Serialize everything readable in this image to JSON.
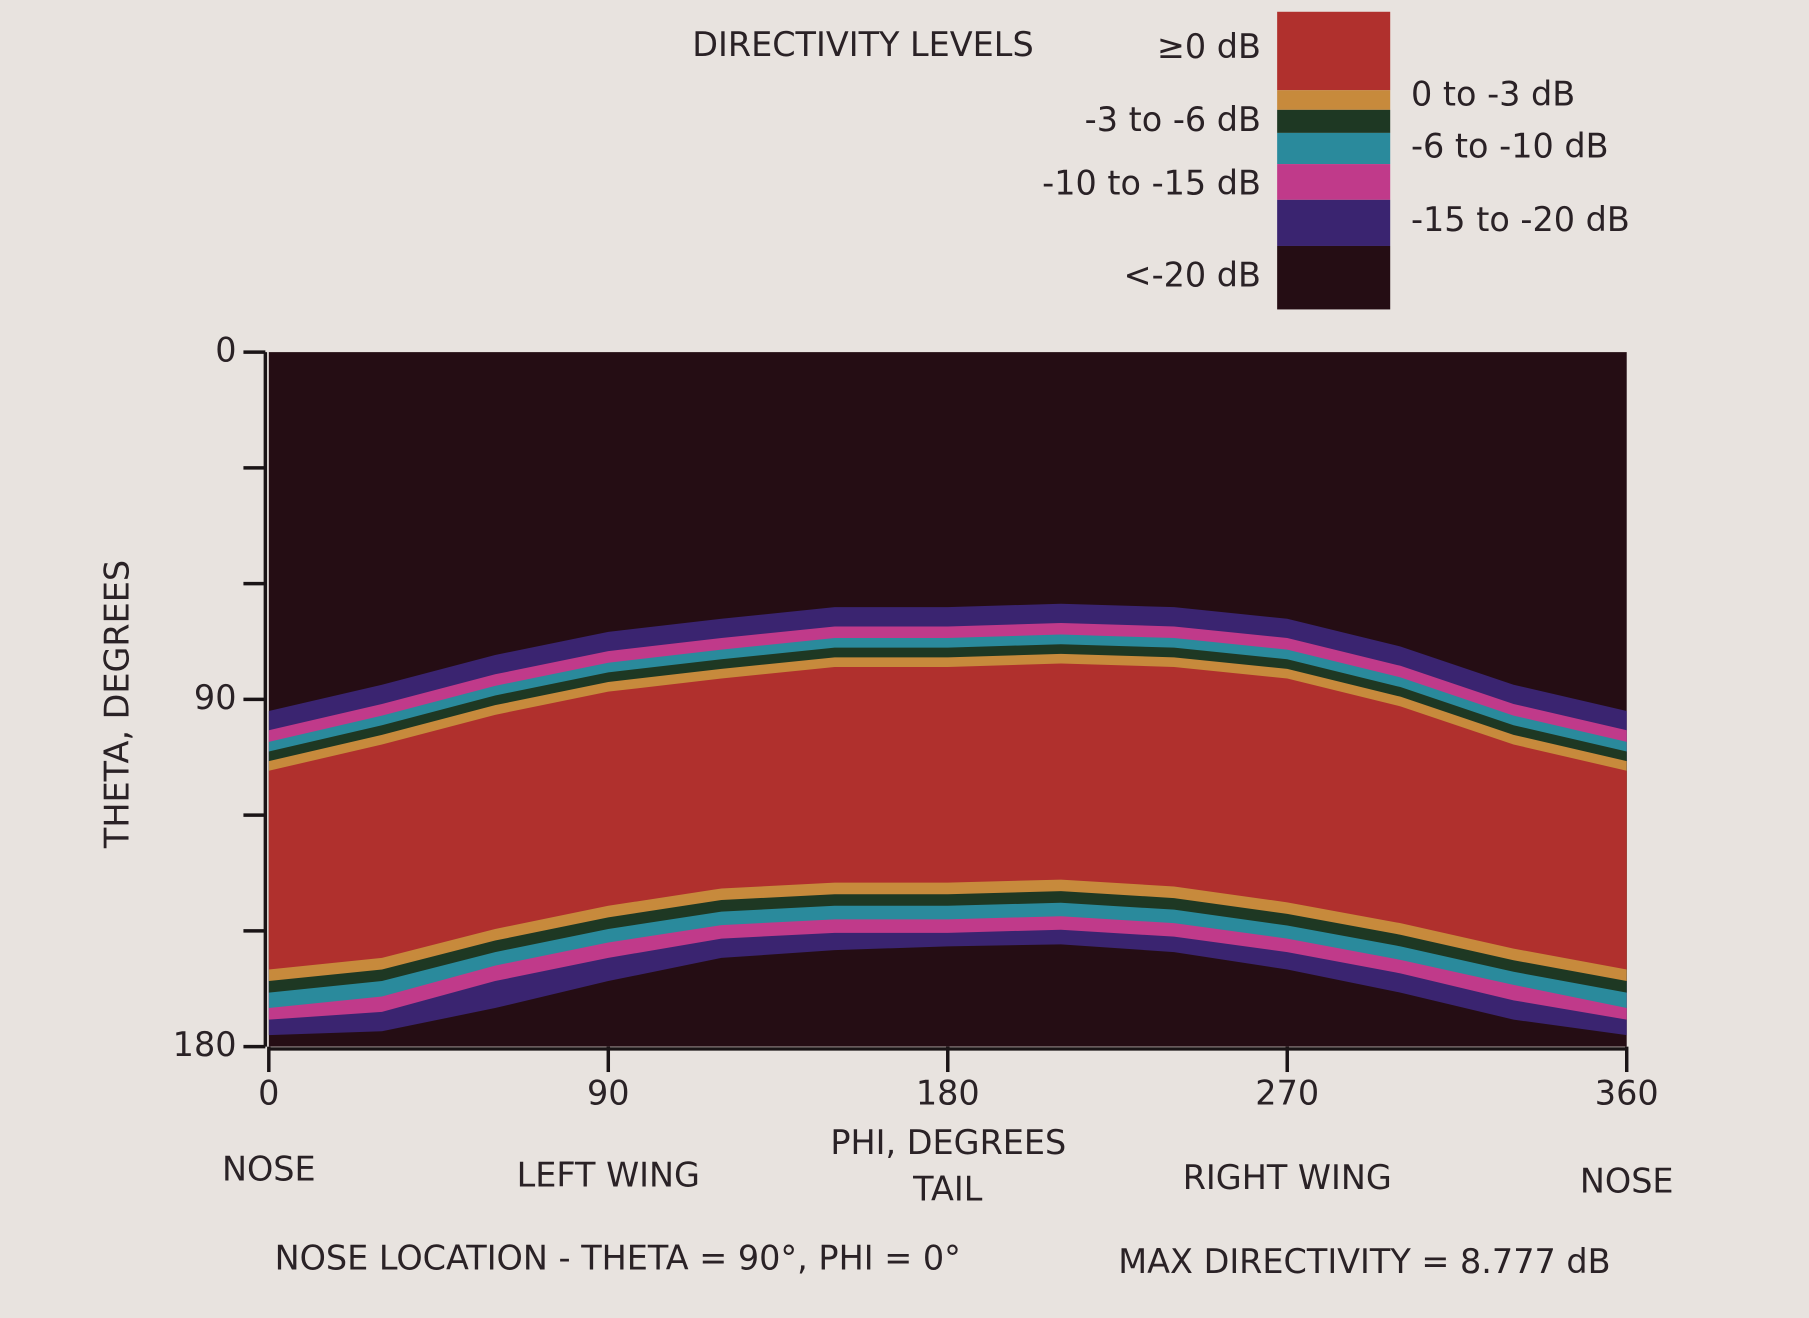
{
  "chart_data": {
    "type": "band-map",
    "xlabel": "PHI, DEGREES",
    "ylabel": "THETA, DEGREES",
    "legend_title": "DIRECTIVITY LEVELS",
    "xlim": [
      0,
      360
    ],
    "xticks": [
      0,
      90,
      180,
      270,
      360
    ],
    "ylim": [
      0,
      180
    ],
    "yticks": [
      0,
      90,
      180
    ],
    "yticks_minor": [
      30,
      60,
      120,
      150
    ],
    "y_inverted": true,
    "x": [
      0,
      30,
      60,
      90,
      120,
      150,
      180,
      210,
      240,
      270,
      300,
      330,
      360
    ],
    "levels": [
      {
        "name": "≥0 dB",
        "color": "#b0302d",
        "top": [
          108.5,
          101.7,
          94,
          88,
          84.6,
          81.6,
          81.6,
          80.7,
          81.6,
          84.6,
          91.8,
          101.7,
          108.5
        ],
        "bottom": [
          160,
          157,
          149.5,
          143.5,
          139,
          137.5,
          137.5,
          136.7,
          138.5,
          142.6,
          148,
          154.6,
          160
        ]
      },
      {
        "name": "0 to -3 dB",
        "color": "#c78a3c",
        "top": [
          106,
          99.2,
          91.5,
          85.5,
          82.1,
          79.1,
          79.1,
          78.2,
          79.1,
          82.1,
          89.3,
          99.2,
          106
        ],
        "bottom": [
          163,
          160,
          152.5,
          146.5,
          142,
          140.5,
          140.5,
          139.7,
          141.5,
          145.6,
          151,
          157.6,
          163
        ]
      },
      {
        "name": "-3 to -6 dB",
        "color": "#1e3823",
        "top": [
          103.5,
          96.7,
          89,
          83,
          79.6,
          76.6,
          76.6,
          75.7,
          76.6,
          79.6,
          86.8,
          96.7,
          103.5
        ],
        "bottom": [
          166,
          163,
          155.5,
          149.5,
          145,
          143.5,
          143.5,
          142.7,
          144.5,
          148.6,
          154,
          160.6,
          166
        ]
      },
      {
        "name": "-6 to -10 dB",
        "color": "#2a8a9c",
        "top": [
          101,
          94.2,
          86.5,
          80.5,
          77.1,
          74.1,
          74.1,
          73.2,
          74.1,
          77.1,
          84.3,
          94.2,
          101
        ],
        "bottom": [
          170,
          167,
          159,
          153,
          148.5,
          147,
          147,
          146.2,
          148,
          152,
          157.5,
          164,
          170
        ]
      },
      {
        "name": "-10 to -15 dB",
        "color": "#c03a8a",
        "top": [
          98,
          91.2,
          83.5,
          77.5,
          74.1,
          71.1,
          71.1,
          70.2,
          71.1,
          74.1,
          81.3,
          91.2,
          98
        ],
        "bottom": [
          173,
          171,
          163,
          157,
          152,
          150.5,
          150.5,
          149.7,
          151.5,
          155.5,
          161,
          168,
          173
        ]
      },
      {
        "name": "-15 to -20 dB",
        "color": "#3a2470",
        "top": [
          93,
          86.2,
          78.5,
          72.5,
          69.1,
          66.1,
          66.1,
          65.2,
          66.1,
          69.1,
          76.3,
          86.2,
          93
        ],
        "bottom": [
          177,
          176,
          170,
          163,
          157,
          155,
          154,
          153.5,
          155.5,
          160,
          166,
          173,
          177
        ]
      },
      {
        "name": "<-20 dB",
        "color": "#250d14"
      }
    ],
    "x_annotations": [
      {
        "x": 0,
        "text": "NOSE"
      },
      {
        "x": 90,
        "text": "LEFT WING"
      },
      {
        "x": 180,
        "text": "TAIL"
      },
      {
        "x": 270,
        "text": "RIGHT WING"
      },
      {
        "x": 360,
        "text": "NOSE"
      }
    ],
    "notes": [
      "NOSE LOCATION - THETA = 90°, PHI = 0°",
      "MAX DIRECTIVITY = 8.777 dB"
    ]
  }
}
